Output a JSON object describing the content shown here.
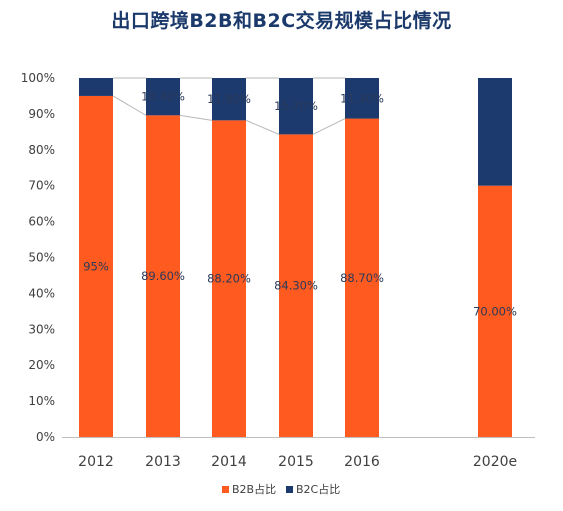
{
  "chart_data": {
    "type": "bar",
    "stacked": "percent",
    "title": "出口跨境B2B和B2C交易规模占比情况",
    "categories": [
      "2012",
      "2013",
      "2014",
      "2015",
      "2016",
      "2020e"
    ],
    "series": [
      {
        "name": "B2B占比",
        "color": "#ff5a1f",
        "values": [
          95,
          89.6,
          88.2,
          84.3,
          88.7,
          70.0
        ],
        "labels": [
          "95%",
          "89.60%",
          "88.20%",
          "84.30%",
          "88.70%",
          "70.00%"
        ]
      },
      {
        "name": "B2C占比",
        "color": "#1d3a6e",
        "values": [
          5,
          10.4,
          11.8,
          15.7,
          11.3,
          30.0
        ],
        "labels": [
          "",
          "10.40%",
          "11.80%",
          "15.70%",
          "11.30%",
          ""
        ]
      }
    ],
    "yticks": [
      "0%",
      "10%",
      "20%",
      "30%",
      "40%",
      "50%",
      "60%",
      "70%",
      "80%",
      "90%",
      "100%"
    ],
    "ylim": [
      0,
      100
    ],
    "series_lines": "connect 2012-2016",
    "grid": false,
    "legend": "bottom-center"
  }
}
